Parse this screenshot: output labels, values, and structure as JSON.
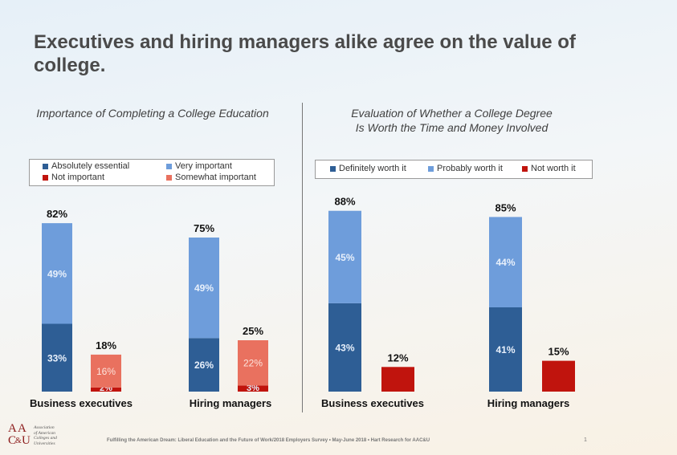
{
  "slide": {
    "title": "Executives and hiring managers alike agree on the value of college.",
    "footer": "Fulfilling the American Dream: Liberal Education and the Future of Work/2018 Employers Survey • May-June 2018 • Hart Research for AAC&U",
    "page_number": "1",
    "logo": {
      "letters": [
        "A",
        "A",
        "C",
        "&",
        "U"
      ],
      "text_lines": [
        "Association",
        "of American",
        "Colleges and",
        "Universities"
      ]
    }
  },
  "colors": {
    "dark_blue": "#2e5e95",
    "light_blue": "#6e9ddb",
    "dark_red": "#c0140d",
    "salmon": "#e9715f"
  },
  "chart_data": [
    {
      "type": "bar",
      "stacked": true,
      "title": "Importance of Completing a College Education",
      "categories": [
        "Business executives",
        "Hiring managers"
      ],
      "legend": {
        "placement": "top",
        "entries": [
          {
            "name": "Absolutely essential",
            "color": "#2e5e95"
          },
          {
            "name": "Very important",
            "color": "#6e9ddb"
          },
          {
            "name": "Not important",
            "color": "#c0140d"
          },
          {
            "name": "Somewhat important",
            "color": "#e9715f"
          }
        ]
      },
      "stacks": [
        {
          "category": "Business executives",
          "groups": [
            {
              "total": 82,
              "total_label": "82%",
              "segments": [
                {
                  "series": "Absolutely essential",
                  "value": 33,
                  "label": "33%"
                },
                {
                  "series": "Very important",
                  "value": 49,
                  "label": "49%"
                }
              ]
            },
            {
              "total": 18,
              "total_label": "18%",
              "segments": [
                {
                  "series": "Not important",
                  "value": 2,
                  "label": "2%"
                },
                {
                  "series": "Somewhat important",
                  "value": 16,
                  "label": "16%"
                }
              ]
            }
          ]
        },
        {
          "category": "Hiring managers",
          "groups": [
            {
              "total": 75,
              "total_label": "75%",
              "segments": [
                {
                  "series": "Absolutely essential",
                  "value": 26,
                  "label": "26%"
                },
                {
                  "series": "Very important",
                  "value": 49,
                  "label": "49%"
                }
              ]
            },
            {
              "total": 25,
              "total_label": "25%",
              "segments": [
                {
                  "series": "Not important",
                  "value": 3,
                  "label": "3%"
                },
                {
                  "series": "Somewhat important",
                  "value": 22,
                  "label": "22%"
                }
              ]
            }
          ]
        }
      ]
    },
    {
      "type": "bar",
      "stacked": true,
      "title": "Evaluation of Whether a College Degree Is Worth the Time and Money Involved",
      "title_lines": [
        "Evaluation of Whether a College Degree",
        "Is Worth the Time and Money Involved"
      ],
      "categories": [
        "Business executives",
        "Hiring managers"
      ],
      "legend": {
        "placement": "top",
        "entries": [
          {
            "name": "Definitely worth it",
            "color": "#2e5e95"
          },
          {
            "name": "Probably worth it",
            "color": "#6e9ddb"
          },
          {
            "name": "Not worth it",
            "color": "#c0140d"
          }
        ]
      },
      "stacks": [
        {
          "category": "Business executives",
          "groups": [
            {
              "total": 88,
              "total_label": "88%",
              "segments": [
                {
                  "series": "Definitely worth it",
                  "value": 43,
                  "label": "43%"
                },
                {
                  "series": "Probably worth it",
                  "value": 45,
                  "label": "45%"
                }
              ]
            },
            {
              "total": 12,
              "total_label": "12%",
              "segments": [
                {
                  "series": "Not worth it",
                  "value": 12,
                  "label": ""
                }
              ]
            }
          ]
        },
        {
          "category": "Hiring managers",
          "groups": [
            {
              "total": 85,
              "total_label": "85%",
              "segments": [
                {
                  "series": "Definitely worth it",
                  "value": 41,
                  "label": "41%"
                },
                {
                  "series": "Probably worth it",
                  "value": 44,
                  "label": "44%"
                }
              ]
            },
            {
              "total": 15,
              "total_label": "15%",
              "segments": [
                {
                  "series": "Not worth it",
                  "value": 15,
                  "label": ""
                }
              ]
            }
          ]
        }
      ]
    }
  ]
}
